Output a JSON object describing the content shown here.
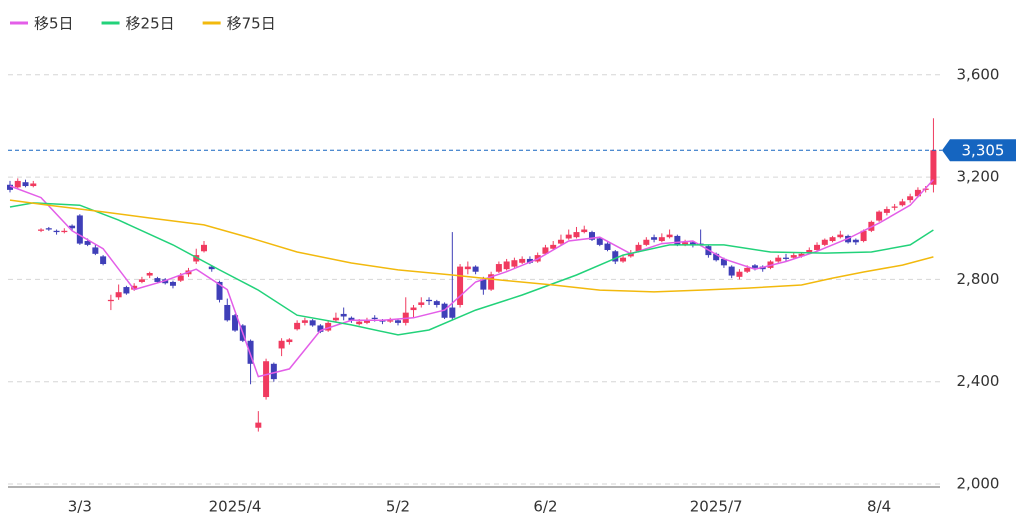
{
  "chart_data": {
    "type": "candlestick",
    "ylim": [
      2000,
      3650
    ],
    "yticks": [
      {
        "value": 2000,
        "label": "2,000"
      },
      {
        "value": 2400,
        "label": "2,400"
      },
      {
        "value": 2800,
        "label": "2,800"
      },
      {
        "value": 3200,
        "label": "3,200"
      },
      {
        "value": 3600,
        "label": "3,600"
      }
    ],
    "grid": true,
    "up_color": "#f03a5f",
    "down_color": "#3f3fb8",
    "last_price": {
      "value": 3305,
      "label": "3,305",
      "color": "#1565c0"
    },
    "categories": [
      null,
      null,
      null,
      null,
      null,
      null,
      null,
      null,
      null,
      "3/3",
      null,
      null,
      null,
      null,
      null,
      null,
      null,
      null,
      null,
      null,
      null,
      null,
      null,
      null,
      null,
      null,
      null,
      null,
      null,
      "2025/4",
      null,
      null,
      null,
      null,
      null,
      null,
      null,
      null,
      null,
      null,
      null,
      null,
      null,
      null,
      null,
      null,
      null,
      null,
      null,
      null,
      "5/2",
      null,
      null,
      null,
      null,
      null,
      null,
      null,
      null,
      null,
      null,
      null,
      null,
      null,
      null,
      null,
      null,
      null,
      null,
      "6/2",
      null,
      null,
      null,
      null,
      null,
      null,
      null,
      null,
      null,
      null,
      null,
      null,
      null,
      null,
      null,
      null,
      null,
      null,
      null,
      null,
      null,
      "2025/7",
      null,
      null,
      null,
      null,
      null,
      null,
      null,
      null,
      null,
      null,
      null,
      null,
      null,
      null,
      null,
      null,
      null,
      null,
      null,
      null,
      "8/4",
      null,
      null,
      null,
      null,
      null,
      null,
      null
    ],
    "candles": [
      [
        3170,
        3185,
        3140,
        3150
      ],
      [
        3160,
        3195,
        3155,
        3185
      ],
      [
        3180,
        3190,
        3160,
        3165
      ],
      [
        3165,
        3185,
        3160,
        3175
      ],
      [
        2990,
        3000,
        2985,
        2995
      ],
      [
        3000,
        3005,
        2990,
        2995
      ],
      [
        2990,
        2995,
        2975,
        2985
      ],
      [
        2985,
        3000,
        2980,
        2990
      ],
      [
        3010,
        3015,
        2990,
        3000
      ],
      [
        3050,
        3055,
        2935,
        2940
      ],
      [
        2950,
        2960,
        2930,
        2935
      ],
      [
        2925,
        2935,
        2895,
        2900
      ],
      [
        2890,
        2895,
        2855,
        2860
      ],
      [
        2715,
        2740,
        2680,
        2720
      ],
      [
        2730,
        2780,
        2720,
        2750
      ],
      [
        2770,
        2775,
        2740,
        2745
      ],
      [
        2760,
        2785,
        2755,
        2775
      ],
      [
        2790,
        2810,
        2785,
        2800
      ],
      [
        2815,
        2830,
        2805,
        2825
      ],
      [
        2805,
        2810,
        2785,
        2790
      ],
      [
        2800,
        2805,
        2780,
        2785
      ],
      [
        2790,
        2795,
        2765,
        2775
      ],
      [
        2795,
        2825,
        2790,
        2815
      ],
      [
        2820,
        2845,
        2810,
        2835
      ],
      [
        2870,
        2920,
        2860,
        2895
      ],
      [
        2910,
        2950,
        2905,
        2935
      ],
      [
        2850,
        2855,
        2830,
        2840
      ],
      [
        2790,
        2795,
        2710,
        2720
      ],
      [
        2700,
        2725,
        2635,
        2640
      ],
      [
        2660,
        2665,
        2595,
        2600
      ],
      [
        2620,
        2625,
        2555,
        2560
      ],
      [
        2560,
        2565,
        2390,
        2470
      ],
      [
        2220,
        2285,
        2205,
        2240
      ],
      [
        2340,
        2490,
        2330,
        2480
      ],
      [
        2470,
        2475,
        2400,
        2410
      ],
      [
        2530,
        2570,
        2500,
        2560
      ],
      [
        2555,
        2570,
        2545,
        2565
      ],
      [
        2605,
        2640,
        2600,
        2630
      ],
      [
        2630,
        2650,
        2620,
        2640
      ],
      [
        2640,
        2645,
        2615,
        2620
      ],
      [
        2620,
        2625,
        2590,
        2595
      ],
      [
        2600,
        2640,
        2595,
        2630
      ],
      [
        2640,
        2670,
        2635,
        2650
      ],
      [
        2665,
        2690,
        2640,
        2655
      ],
      [
        2650,
        2655,
        2630,
        2640
      ],
      [
        2625,
        2645,
        2620,
        2635
      ],
      [
        2630,
        2650,
        2625,
        2640
      ],
      [
        2650,
        2660,
        2635,
        2645
      ],
      [
        2640,
        2645,
        2625,
        2635
      ],
      [
        2635,
        2650,
        2630,
        2640
      ],
      [
        2640,
        2645,
        2620,
        2630
      ],
      [
        2630,
        2730,
        2620,
        2670
      ],
      [
        2680,
        2700,
        2650,
        2690
      ],
      [
        2700,
        2730,
        2690,
        2710
      ],
      [
        2720,
        2730,
        2700,
        2715
      ],
      [
        2715,
        2720,
        2690,
        2700
      ],
      [
        2705,
        2710,
        2645,
        2650
      ],
      [
        2690,
        2985,
        2640,
        2650
      ],
      [
        2700,
        2860,
        2690,
        2850
      ],
      [
        2840,
        2870,
        2820,
        2850
      ],
      [
        2850,
        2855,
        2820,
        2830
      ],
      [
        2800,
        2810,
        2740,
        2760
      ],
      [
        2760,
        2830,
        2755,
        2820
      ],
      [
        2830,
        2870,
        2825,
        2860
      ],
      [
        2840,
        2880,
        2835,
        2870
      ],
      [
        2850,
        2885,
        2845,
        2875
      ],
      [
        2865,
        2890,
        2860,
        2880
      ],
      [
        2880,
        2890,
        2860,
        2865
      ],
      [
        2870,
        2905,
        2865,
        2895
      ],
      [
        2900,
        2935,
        2895,
        2925
      ],
      [
        2920,
        2950,
        2915,
        2935
      ],
      [
        2940,
        2975,
        2935,
        2955
      ],
      [
        2960,
        2995,
        2955,
        2975
      ],
      [
        2965,
        3005,
        2960,
        2985
      ],
      [
        2985,
        3010,
        2980,
        2995
      ],
      [
        2985,
        2990,
        2950,
        2955
      ],
      [
        2960,
        2965,
        2930,
        2935
      ],
      [
        2940,
        2945,
        2910,
        2915
      ],
      [
        2910,
        2915,
        2860,
        2870
      ],
      [
        2870,
        2895,
        2865,
        2885
      ],
      [
        2890,
        2915,
        2885,
        2905
      ],
      [
        2910,
        2945,
        2905,
        2935
      ],
      [
        2935,
        2965,
        2930,
        2955
      ],
      [
        2965,
        2975,
        2945,
        2955
      ],
      [
        2950,
        2980,
        2945,
        2965
      ],
      [
        2965,
        2995,
        2960,
        2975
      ],
      [
        2970,
        2975,
        2930,
        2935
      ],
      [
        2935,
        2955,
        2930,
        2945
      ],
      [
        2945,
        2950,
        2925,
        2935
      ],
      [
        2940,
        2995,
        2930,
        2935
      ],
      [
        2930,
        2935,
        2885,
        2895
      ],
      [
        2900,
        2905,
        2870,
        2875
      ],
      [
        2880,
        2885,
        2845,
        2855
      ],
      [
        2850,
        2855,
        2805,
        2815
      ],
      [
        2810,
        2840,
        2800,
        2830
      ],
      [
        2830,
        2855,
        2825,
        2845
      ],
      [
        2855,
        2860,
        2835,
        2845
      ],
      [
        2850,
        2855,
        2830,
        2840
      ],
      [
        2845,
        2875,
        2840,
        2870
      ],
      [
        2870,
        2895,
        2865,
        2885
      ],
      [
        2885,
        2900,
        2870,
        2880
      ],
      [
        2885,
        2905,
        2880,
        2895
      ],
      [
        2890,
        2905,
        2885,
        2900
      ],
      [
        2905,
        2925,
        2900,
        2915
      ],
      [
        2915,
        2945,
        2910,
        2935
      ],
      [
        2935,
        2960,
        2930,
        2955
      ],
      [
        2950,
        2970,
        2945,
        2965
      ],
      [
        2965,
        2990,
        2960,
        2975
      ],
      [
        2970,
        2975,
        2940,
        2945
      ],
      [
        2955,
        2960,
        2935,
        2945
      ],
      [
        2950,
        2995,
        2945,
        2990
      ],
      [
        2990,
        3030,
        2985,
        3025
      ],
      [
        3030,
        3070,
        3025,
        3065
      ],
      [
        3060,
        3085,
        3050,
        3075
      ],
      [
        3080,
        3095,
        3070,
        3085
      ],
      [
        3090,
        3115,
        3085,
        3105
      ],
      [
        3110,
        3135,
        3100,
        3125
      ],
      [
        3125,
        3160,
        3120,
        3150
      ],
      [
        3150,
        3165,
        3140,
        3155
      ],
      [
        3170,
        3430,
        3140,
        3305
      ]
    ],
    "series": [
      {
        "name": "移5日",
        "color": "#e35ee8",
        "x": [
          0,
          4,
          8,
          12,
          16,
          20,
          24,
          28,
          32,
          36,
          40,
          44,
          48,
          52,
          56,
          60,
          64,
          68,
          72,
          76,
          80,
          84,
          88,
          92,
          96,
          100,
          104,
          108,
          112,
          116,
          119
        ],
        "values": [
          3165,
          3120,
          2990,
          2920,
          2760,
          2795,
          2840,
          2760,
          2420,
          2450,
          2600,
          2640,
          2640,
          2650,
          2680,
          2790,
          2830,
          2880,
          2950,
          2965,
          2900,
          2940,
          2950,
          2880,
          2840,
          2870,
          2910,
          2960,
          3020,
          3090,
          3190
        ]
      },
      {
        "name": "移25日",
        "color": "#22d27a",
        "x": [
          0,
          3,
          9,
          14,
          21,
          27,
          32,
          37,
          44,
          50,
          54,
          60,
          66,
          73,
          79,
          85,
          92,
          98,
          105,
          111,
          116,
          119
        ],
        "values": [
          3083,
          3099,
          3090,
          3032,
          2935,
          2837,
          2758,
          2660,
          2622,
          2583,
          2602,
          2680,
          2739,
          2817,
          2895,
          2935,
          2935,
          2907,
          2903,
          2907,
          2935,
          2993
        ]
      },
      {
        "name": "移75日",
        "color": "#f2b90d",
        "x": [
          0,
          5,
          12,
          18,
          25,
          31,
          37,
          44,
          50,
          57,
          63,
          70,
          76,
          83,
          89,
          95,
          102,
          106,
          110,
          115,
          119
        ],
        "values": [
          3110,
          3090,
          3064,
          3040,
          3013,
          2962,
          2907,
          2864,
          2837,
          2817,
          2798,
          2778,
          2758,
          2751,
          2758,
          2766,
          2778,
          2805,
          2829,
          2856,
          2888
        ]
      }
    ]
  }
}
